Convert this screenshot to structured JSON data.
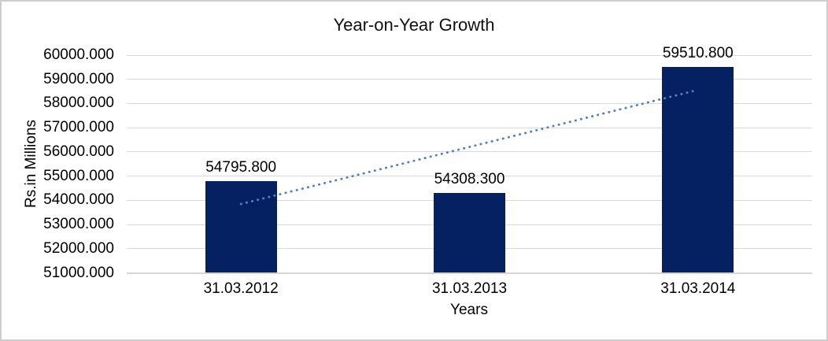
{
  "frame": {
    "background_color": "#ffffff",
    "border_color": "#cdcdcd"
  },
  "chart_data": {
    "type": "bar",
    "title": "Year-on-Year Growth",
    "xlabel": "Years",
    "ylabel": "Rs.in Millions",
    "categories": [
      "31.03.2012",
      "31.03.2013",
      "31.03.2014"
    ],
    "values": [
      54795.8,
      54308.3,
      59510.8
    ],
    "value_labels": [
      "54795.800",
      "54308.300",
      "59510.800"
    ],
    "y_tick_labels": [
      "60000.000",
      "59000.000",
      "58000.000",
      "57000.000",
      "56000.000",
      "55000.000",
      "54000.000",
      "53000.000",
      "52000.000",
      "51000.000"
    ],
    "ylim": [
      51000,
      60000
    ],
    "y_tick_step": 1000,
    "grid": true,
    "legend_position": "none",
    "bar_color": "#062161",
    "gridline_color": "#d9d9d9",
    "axis_line_color": "#d6d6d6",
    "text_color": "#000000",
    "trendline": {
      "type": "linear",
      "style": "dotted",
      "color": "#4e80c7",
      "start_value": 53847.5,
      "end_value": 58562.5
    }
  }
}
